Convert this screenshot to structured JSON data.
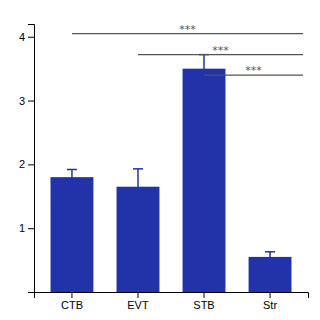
{
  "chart_data": {
    "type": "bar",
    "categories": [
      "CTB",
      "EVT",
      "STB",
      "Str"
    ],
    "values": [
      1.8,
      1.65,
      3.5,
      0.55
    ],
    "errors": [
      0.12,
      0.28,
      0.22,
      0.08
    ],
    "color": "#2233aa",
    "ylim": [
      0,
      4.2
    ],
    "yticks": [
      1,
      2,
      3,
      4
    ],
    "grid": false,
    "annotations": [
      {
        "text": "***",
        "y": 4.05,
        "from": "CTB",
        "color": "#555555"
      },
      {
        "text": "***",
        "y": 3.72,
        "from": "EVT",
        "color": "#555555"
      },
      {
        "text": "***",
        "y": 3.4,
        "from": "STB",
        "color": "#555555"
      }
    ]
  }
}
